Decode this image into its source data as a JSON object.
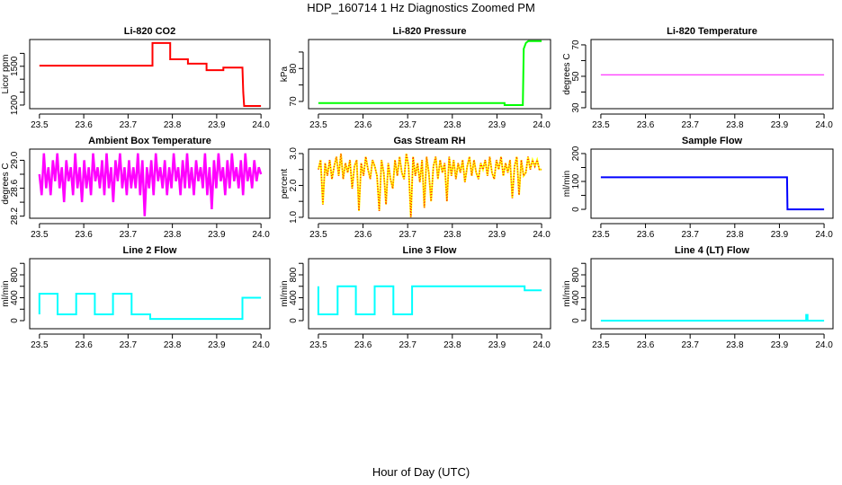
{
  "title": "HDP_160714  1 Hz Diagnostics Zoomed PM",
  "xlabel": "Hour of Day (UTC)",
  "chart_data": [
    {
      "type": "line",
      "title": "Li-820 CO2",
      "ylabel": "Licor ppm",
      "color": "#ff0000",
      "ylim": [
        1172,
        1707
      ],
      "yticks": [
        1200,
        1300,
        1400,
        1500,
        1600
      ],
      "ylabels": [
        "1200",
        "1500"
      ],
      "xlim": [
        23.478,
        24.02
      ],
      "xticks": [
        "23.5",
        "23.6",
        "23.7",
        "23.8",
        "23.9",
        "24.0"
      ],
      "x": [
        23.5,
        23.755,
        23.755,
        23.795,
        23.795,
        23.835,
        23.835,
        23.877,
        23.877,
        23.915,
        23.915,
        23.958,
        23.96,
        23.962,
        24.0
      ],
      "y": [
        1505,
        1505,
        1680,
        1680,
        1554,
        1554,
        1520,
        1520,
        1470,
        1470,
        1490,
        1490,
        1300,
        1193,
        1193
      ]
    },
    {
      "type": "line",
      "title": "Li-820 Pressure",
      "ylabel": "kPa",
      "color": "#00ff00",
      "ylim": [
        67.8,
        88.8
      ],
      "yticks": [
        70,
        75,
        80,
        85
      ],
      "ylabels": [
        "70",
        "80"
      ],
      "xlim": [
        23.478,
        24.02
      ],
      "xticks": [
        "23.5",
        "23.6",
        "23.7",
        "23.8",
        "23.9",
        "24.0"
      ],
      "x": [
        23.5,
        23.917,
        23.917,
        23.958,
        23.96,
        23.965,
        23.97,
        24.0
      ],
      "y": [
        69.5,
        69.5,
        68.9,
        68.9,
        86,
        87.8,
        88.3,
        88.3
      ]
    },
    {
      "type": "line",
      "title": "Li-820 Temperature",
      "ylabel": "degrees C",
      "color": "#ff00ff",
      "ylim": [
        29.4,
        73.4
      ],
      "yticks": [
        30,
        40,
        50,
        60,
        70
      ],
      "ylabels": [
        "30",
        "50",
        "70"
      ],
      "xlim": [
        23.478,
        24.02
      ],
      "xticks": [
        "23.5",
        "23.6",
        "23.7",
        "23.8",
        "23.9",
        "24.0"
      ],
      "x": [
        23.5,
        24.0
      ],
      "y": [
        51,
        51
      ]
    },
    {
      "type": "noise",
      "title": "Ambient Box Temperature",
      "ylabel": "degrees C",
      "color": "#ff00ff",
      "ylim": [
        28.17,
        29.16
      ],
      "yticks": [
        28.2,
        28.4,
        28.6,
        28.8,
        29.0
      ],
      "ylabels": [
        "28.2",
        "28.6",
        "29.0"
      ],
      "xlim": [
        23.478,
        24.02
      ],
      "xticks": [
        "23.5",
        "23.6",
        "23.7",
        "23.8",
        "23.9",
        "24.0"
      ],
      "x_range": [
        23.5,
        24.0
      ],
      "y": [
        28.8,
        28.5,
        29.1,
        28.6,
        28.9,
        28.5,
        29.0,
        28.7,
        29.1,
        28.6,
        28.9,
        28.4,
        29.0,
        28.7,
        28.9,
        28.5,
        29.1,
        28.6,
        28.9,
        28.4,
        29.0,
        28.6,
        28.9,
        28.5,
        29.1,
        28.7,
        28.9,
        28.6,
        29.0,
        28.5,
        29.1,
        28.6,
        28.9,
        28.4,
        29.0,
        28.7,
        29.1,
        28.6,
        28.9,
        28.5,
        29.0,
        28.6,
        28.9,
        28.6,
        29.1,
        28.5,
        29.0,
        28.2,
        28.9,
        28.6,
        29.0,
        28.5,
        29.1,
        28.7,
        28.9,
        28.6,
        29.0,
        28.5,
        28.9,
        28.6,
        29.1,
        28.7,
        28.9,
        28.5,
        29.0,
        28.6,
        29.1,
        28.6,
        28.9,
        28.5,
        29.0,
        28.7,
        28.9,
        28.6,
        29.1,
        28.5,
        28.9,
        28.3,
        29.0,
        28.6,
        29.1,
        28.7,
        28.9,
        28.5,
        29.0,
        28.6,
        29.1,
        28.7,
        28.9,
        28.6,
        29.0,
        28.5,
        29.1,
        28.7,
        28.9,
        28.6,
        29.0,
        28.7,
        28.9,
        28.8
      ]
    },
    {
      "type": "noise2",
      "title": "Gas Stream RH",
      "ylabel": "percent",
      "color": "#ffff00",
      "color2": "#ff2000",
      "ylim": [
        0.97,
        3.14
      ],
      "yticks": [
        1.0,
        1.5,
        2.0,
        2.5,
        3.0
      ],
      "ylabels": [
        "1.0",
        "2.0",
        "3.0"
      ],
      "xlim": [
        23.478,
        24.02
      ],
      "xticks": [
        "23.5",
        "23.6",
        "23.7",
        "23.8",
        "23.9",
        "24.0"
      ],
      "x_range": [
        23.5,
        24.0
      ],
      "y": [
        2.5,
        2.8,
        1.4,
        2.7,
        2.3,
        2.8,
        2.2,
        2.6,
        2.9,
        2.3,
        3.0,
        2.2,
        2.7,
        2.4,
        2.8,
        1.9,
        2.6,
        2.8,
        1.2,
        2.7,
        2.3,
        2.9,
        2.5,
        2.2,
        2.8,
        2.6,
        2.3,
        1.2,
        2.8,
        2.4,
        1.4,
        2.7,
        2.2,
        1.9,
        2.8,
        2.3,
        2.9,
        2.4,
        2.2,
        3.0,
        2.6,
        1.0,
        2.9,
        2.3,
        2.7,
        2.1,
        2.8,
        1.3,
        2.9,
        2.4,
        1.5,
        2.6,
        2.9,
        2.2,
        2.8,
        2.4,
        2.7,
        1.5,
        2.9,
        2.3,
        2.8,
        2.2,
        2.7,
        2.4,
        2.8,
        2.1,
        2.6,
        2.9,
        2.3,
        2.8,
        2.4,
        2.2,
        2.7,
        2.5,
        2.8,
        2.3,
        2.9,
        2.4,
        2.2,
        2.8,
        2.5,
        2.9,
        2.3,
        2.7,
        2.4,
        2.8,
        1.6,
        2.6,
        2.9,
        1.7,
        2.8,
        2.3,
        2.4,
        2.9,
        2.5,
        2.8,
        2.6,
        2.8,
        2.5,
        2.5
      ]
    },
    {
      "type": "line",
      "title": "Sample Flow",
      "ylabel": "ml/min",
      "color": "#0000ff",
      "ylim": [
        -32,
        216
      ],
      "yticks": [
        0,
        50,
        100,
        150,
        200
      ],
      "ylabels": [
        "0",
        "100",
        "200"
      ],
      "xlim": [
        23.478,
        24.02
      ],
      "xticks": [
        "23.5",
        "23.6",
        "23.7",
        "23.8",
        "23.9",
        "24.0"
      ],
      "x": [
        23.5,
        23.917,
        23.918,
        24.0
      ],
      "y": [
        115,
        115,
        0,
        0
      ]
    },
    {
      "type": "line",
      "title": "Line 2 Flow",
      "ylabel": "ml/min",
      "color": "#00ffff",
      "ylim": [
        -141,
        1082
      ],
      "yticks": [
        0,
        200,
        400,
        600,
        800,
        1000
      ],
      "ylabels": [
        "0",
        "400",
        "800"
      ],
      "xlim": [
        23.478,
        24.02
      ],
      "xticks": [
        "23.5",
        "23.6",
        "23.7",
        "23.8",
        "23.9",
        "24.0"
      ],
      "x": [
        23.5,
        23.5,
        23.541,
        23.541,
        23.583,
        23.583,
        23.625,
        23.625,
        23.666,
        23.666,
        23.708,
        23.708,
        23.75,
        23.75,
        23.958,
        23.958,
        24.0
      ],
      "y": [
        110,
        470,
        470,
        110,
        110,
        470,
        470,
        110,
        110,
        470,
        470,
        110,
        110,
        30,
        30,
        400,
        400
      ]
    },
    {
      "type": "line",
      "title": "Line 3 Flow",
      "ylabel": "ml/min",
      "color": "#00ffff",
      "ylim": [
        -141,
        1082
      ],
      "yticks": [
        0,
        200,
        400,
        600,
        800,
        1000
      ],
      "ylabels": [
        "0",
        "400",
        "800"
      ],
      "xlim": [
        23.478,
        24.02
      ],
      "xticks": [
        "23.5",
        "23.6",
        "23.7",
        "23.8",
        "23.9",
        "24.0"
      ],
      "x": [
        23.5,
        23.5,
        23.543,
        23.543,
        23.584,
        23.584,
        23.626,
        23.626,
        23.668,
        23.668,
        23.71,
        23.71,
        23.962,
        23.962,
        24.0
      ],
      "y": [
        600,
        110,
        110,
        600,
        600,
        110,
        110,
        600,
        600,
        110,
        110,
        600,
        600,
        530,
        530
      ]
    },
    {
      "type": "line",
      "title": "Line 4 (LT) Flow",
      "ylabel": "ml/min",
      "color": "#00ffff",
      "ylim": [
        -141,
        1082
      ],
      "yticks": [
        0,
        200,
        400,
        600,
        800,
        1000
      ],
      "ylabels": [
        "0",
        "400",
        "800"
      ],
      "xlim": [
        23.478,
        24.02
      ],
      "xticks": [
        "23.5",
        "23.6",
        "23.7",
        "23.8",
        "23.9",
        "24.0"
      ],
      "x": [
        23.5,
        23.96,
        23.96,
        23.963,
        23.963,
        24.0
      ],
      "y": [
        0,
        0,
        100,
        100,
        0,
        0
      ]
    }
  ]
}
